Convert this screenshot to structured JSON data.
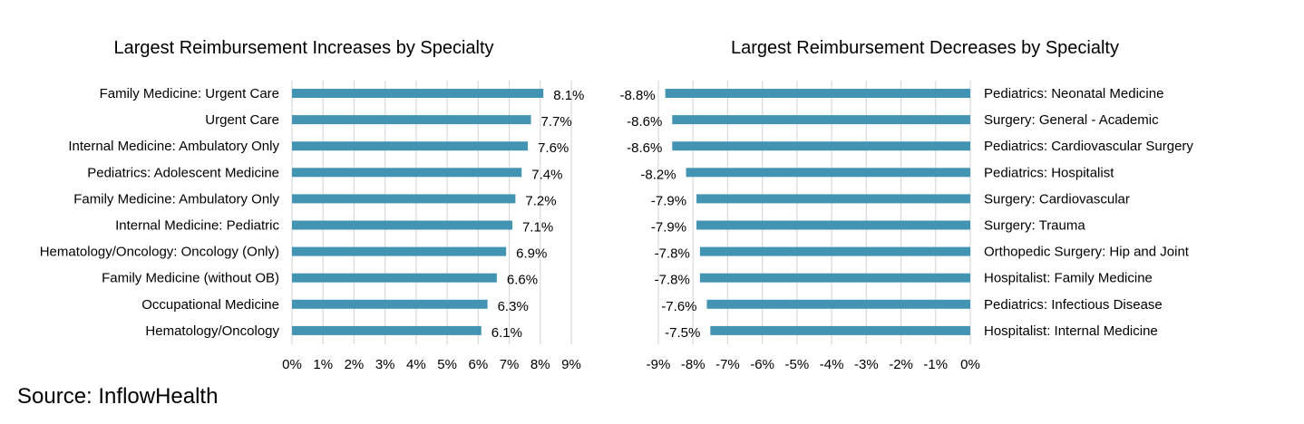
{
  "chart_data": [
    {
      "type": "bar",
      "orientation": "horizontal",
      "title": "Largest Reimbursement Increases by Specialty",
      "categories": [
        "Family Medicine: Urgent Care",
        "Urgent Care",
        "Internal Medicine: Ambulatory Only",
        "Pediatrics: Adolescent Medicine",
        "Family Medicine: Ambulatory Only",
        "Internal Medicine: Pediatric",
        "Hematology/Oncology: Oncology (Only)",
        "Family Medicine (without OB)",
        "Occupational Medicine",
        "Hematology/Oncology"
      ],
      "values": [
        8.1,
        7.7,
        7.6,
        7.4,
        7.2,
        7.1,
        6.9,
        6.6,
        6.3,
        6.1
      ],
      "data_labels": [
        "8.1%",
        "7.7%",
        "7.6%",
        "7.4%",
        "7.2%",
        "7.1%",
        "6.9%",
        "6.6%",
        "6.3%",
        "6.1%"
      ],
      "xlim": [
        0,
        9
      ],
      "x_ticks": [
        "0%",
        "1%",
        "2%",
        "3%",
        "4%",
        "5%",
        "6%",
        "7%",
        "8%",
        "9%"
      ],
      "grid": true,
      "bar_color": "#4393B3"
    },
    {
      "type": "bar",
      "orientation": "horizontal",
      "title": "Largest Reimbursement Decreases by Specialty",
      "categories": [
        "Pediatrics: Neonatal Medicine",
        "Surgery: General - Academic",
        "Pediatrics: Cardiovascular Surgery",
        "Pediatrics: Hospitalist",
        "Surgery: Cardiovascular",
        "Surgery: Trauma",
        "Orthopedic Surgery: Hip and Joint",
        "Hospitalist: Family Medicine",
        "Pediatrics: Infectious Disease",
        "Hospitalist: Internal Medicine"
      ],
      "values": [
        -8.8,
        -8.6,
        -8.6,
        -8.2,
        -7.9,
        -7.9,
        -7.8,
        -7.8,
        -7.6,
        -7.5
      ],
      "data_labels": [
        "-8.8%",
        "-8.6%",
        "-8.6%",
        "-8.2%",
        "-7.9%",
        "-7.9%",
        "-7.8%",
        "-7.8%",
        "-7.6%",
        "-7.5%"
      ],
      "xlim": [
        -9,
        0
      ],
      "x_ticks": [
        "-9%",
        "-8%",
        "-7%",
        "-6%",
        "-5%",
        "-4%",
        "-3%",
        "-2%",
        "-1%",
        "0%"
      ],
      "grid": true,
      "bar_color": "#4393B3"
    }
  ],
  "source": "Source: InflowHealth"
}
